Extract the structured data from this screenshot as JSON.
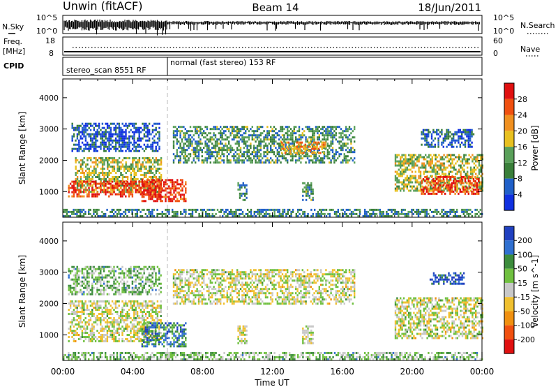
{
  "header": {
    "station": "Unwin (fitACF)",
    "beam": "Beam 14",
    "date": "18/Jun/2011"
  },
  "aux_panels": {
    "nsky": {
      "label": "N.Sky",
      "ticks_left": [
        "10^5",
        "10^0"
      ],
      "right_label": "N.Search",
      "ticks_right": [
        "10^5",
        "10^0"
      ]
    },
    "freq": {
      "label_line1": "Freq.",
      "label_line2": "[MHz]",
      "ticks_left": [
        "18",
        "8"
      ],
      "right_label": "Nave",
      "ticks_right": [
        "60",
        "0"
      ]
    },
    "cpid": {
      "label": "CPID",
      "segment1": "stereo_scan 8551 RF",
      "segment2": "normal (fast stereo) 153 RF",
      "switch_time_hours": 6.0
    }
  },
  "chart_data": [
    {
      "type": "heatmap",
      "panel": "power",
      "ylabel": "Slant Range [km]",
      "xlabel": "Time UT",
      "x_ticks": [
        "00:00",
        "04:00",
        "08:00",
        "12:00",
        "16:00",
        "20:00",
        "00:00"
      ],
      "x_range_hours": [
        0,
        24
      ],
      "y_ticks": [
        1000,
        2000,
        3000,
        4000
      ],
      "ylim": [
        180,
        4600
      ],
      "colorbar": {
        "label": "Power [dB]",
        "ticks": [
          "4",
          "8",
          "12",
          "16",
          "20",
          "24",
          "28"
        ],
        "colors": [
          "#1030e0",
          "#2060c8",
          "#3a7f3a",
          "#5aa05a",
          "#e8c020",
          "#f09020",
          "#f05010",
          "#e01010"
        ]
      },
      "regions": [
        {
          "t": [
            0.7,
            5.6
          ],
          "r": [
            1000,
            2100
          ],
          "level": 0.5
        },
        {
          "t": [
            0.3,
            5.6
          ],
          "r": [
            850,
            1350
          ],
          "level": 0.85
        },
        {
          "t": [
            0.5,
            5.5
          ],
          "r": [
            2300,
            3200
          ],
          "level": 0.15
        },
        {
          "t": [
            4.5,
            7.0
          ],
          "r": [
            700,
            1400
          ],
          "level": 0.9
        },
        {
          "t": [
            6.3,
            16.7
          ],
          "r": [
            1900,
            3100
          ],
          "level": 0.35
        },
        {
          "t": [
            12.5,
            15.0
          ],
          "r": [
            2200,
            2600
          ],
          "level": 0.65
        },
        {
          "t": [
            10.0,
            10.5
          ],
          "r": [
            700,
            1300
          ],
          "level": 0.3
        },
        {
          "t": [
            13.7,
            14.3
          ],
          "r": [
            700,
            1300
          ],
          "level": 0.35
        },
        {
          "t": [
            19.0,
            24.0
          ],
          "r": [
            1000,
            2200
          ],
          "level": 0.5
        },
        {
          "t": [
            20.5,
            23.8
          ],
          "r": [
            900,
            1500
          ],
          "level": 0.85
        },
        {
          "t": [
            20.5,
            23.5
          ],
          "r": [
            2400,
            3000
          ],
          "level": 0.2
        },
        {
          "t": [
            0.0,
            24.0
          ],
          "r": [
            200,
            450
          ],
          "level": 0.3
        }
      ]
    },
    {
      "type": "heatmap",
      "panel": "velocity",
      "ylabel": "Slant Range [km]",
      "xlabel": "Time UT",
      "x_ticks": [
        "00:00",
        "04:00",
        "08:00",
        "12:00",
        "16:00",
        "20:00",
        "00:00"
      ],
      "x_range_hours": [
        0,
        24
      ],
      "y_ticks": [
        1000,
        2000,
        3000,
        4000
      ],
      "ylim": [
        180,
        4600
      ],
      "colorbar": {
        "label": "Velocity [m s^-1]",
        "ticks": [
          "200",
          "100",
          "50",
          "15",
          "-15",
          "-50",
          "-100",
          "-200"
        ],
        "colors": [
          "#2040c0",
          "#3070d0",
          "#3c8c3c",
          "#70c040",
          "#c8c8c8",
          "#f0c030",
          "#f09010",
          "#f05010",
          "#e01010"
        ]
      },
      "regions": [
        {
          "t": [
            0.3,
            5.6
          ],
          "r": [
            800,
            2100
          ],
          "level": 0.5
        },
        {
          "t": [
            0.3,
            5.6
          ],
          "r": [
            2300,
            3200
          ],
          "level": 0.62
        },
        {
          "t": [
            4.5,
            7.0
          ],
          "r": [
            600,
            1400
          ],
          "level": 0.78
        },
        {
          "t": [
            6.3,
            16.7
          ],
          "r": [
            2000,
            3100
          ],
          "level": 0.5
        },
        {
          "t": [
            10.0,
            10.5
          ],
          "r": [
            700,
            1300
          ],
          "level": 0.5
        },
        {
          "t": [
            13.7,
            14.3
          ],
          "r": [
            700,
            1300
          ],
          "level": 0.5
        },
        {
          "t": [
            19.0,
            24.0
          ],
          "r": [
            900,
            2200
          ],
          "level": 0.5
        },
        {
          "t": [
            21.0,
            23.0
          ],
          "r": [
            2600,
            3000
          ],
          "level": 0.9
        },
        {
          "t": [
            0.0,
            24.0
          ],
          "r": [
            200,
            450
          ],
          "level": 0.62
        }
      ]
    }
  ]
}
